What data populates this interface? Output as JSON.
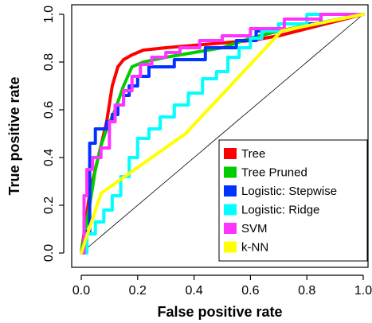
{
  "chart_data": {
    "type": "line",
    "title": "",
    "xlabel": "False positive rate",
    "ylabel": "True positive rate",
    "xlim": [
      0,
      1
    ],
    "ylim": [
      0,
      1
    ],
    "x_ticks": [
      "0.0",
      "0.2",
      "0.4",
      "0.6",
      "0.8",
      "1.0"
    ],
    "y_ticks": [
      "0.0",
      "0.2",
      "0.4",
      "0.6",
      "0.8",
      "1.0"
    ],
    "grid": false,
    "legend_position": "bottom-right",
    "diagonal_reference": true,
    "series": [
      {
        "name": "Tree",
        "color": "#ff0000",
        "x": [
          0,
          0.03,
          0.06,
          0.09,
          0.11,
          0.13,
          0.15,
          0.18,
          0.22,
          0.3,
          0.4,
          0.5,
          0.6,
          0.7,
          1.0
        ],
        "y": [
          0,
          0.25,
          0.4,
          0.55,
          0.7,
          0.78,
          0.81,
          0.83,
          0.85,
          0.86,
          0.87,
          0.88,
          0.89,
          0.91,
          1.0
        ]
      },
      {
        "name": "Tree Pruned",
        "color": "#00cc00",
        "x": [
          0,
          0.03,
          0.05,
          0.07,
          0.09,
          0.12,
          0.15,
          0.18,
          0.22,
          0.3,
          0.4,
          0.5,
          0.6,
          0.7,
          1.0
        ],
        "y": [
          0,
          0.2,
          0.35,
          0.45,
          0.52,
          0.6,
          0.7,
          0.78,
          0.8,
          0.82,
          0.84,
          0.86,
          0.9,
          0.93,
          1.0
        ]
      },
      {
        "name": "Logistic: Stepwise",
        "color": "#0033ff",
        "x": [
          0,
          0.01,
          0.01,
          0.03,
          0.03,
          0.05,
          0.05,
          0.09,
          0.09,
          0.11,
          0.11,
          0.13,
          0.13,
          0.15,
          0.15,
          0.17,
          0.17,
          0.2,
          0.2,
          0.24,
          0.24,
          0.33,
          0.33,
          0.44,
          0.44,
          0.55,
          0.55,
          0.62,
          0.62,
          0.7,
          0.7,
          0.85,
          0.85,
          1.0
        ],
        "y": [
          0,
          0,
          0.09,
          0.09,
          0.46,
          0.46,
          0.52,
          0.52,
          0.55,
          0.55,
          0.58,
          0.58,
          0.62,
          0.62,
          0.66,
          0.66,
          0.7,
          0.7,
          0.74,
          0.74,
          0.78,
          0.78,
          0.81,
          0.81,
          0.86,
          0.86,
          0.89,
          0.89,
          0.93,
          0.93,
          0.96,
          0.96,
          1.0,
          1.0
        ]
      },
      {
        "name": "Logistic: Ridge",
        "color": "#00ffff",
        "x": [
          0,
          0.02,
          0.02,
          0.05,
          0.05,
          0.08,
          0.08,
          0.11,
          0.11,
          0.14,
          0.14,
          0.17,
          0.17,
          0.2,
          0.2,
          0.24,
          0.24,
          0.28,
          0.28,
          0.33,
          0.33,
          0.38,
          0.38,
          0.43,
          0.43,
          0.48,
          0.48,
          0.52,
          0.52,
          0.56,
          0.56,
          0.6,
          0.6,
          0.64,
          0.64,
          0.7,
          0.7,
          0.8,
          0.8,
          1.0
        ],
        "y": [
          0,
          0,
          0.08,
          0.08,
          0.13,
          0.13,
          0.18,
          0.18,
          0.24,
          0.24,
          0.32,
          0.32,
          0.4,
          0.4,
          0.48,
          0.48,
          0.52,
          0.52,
          0.57,
          0.57,
          0.62,
          0.62,
          0.67,
          0.67,
          0.73,
          0.73,
          0.76,
          0.76,
          0.82,
          0.82,
          0.86,
          0.86,
          0.9,
          0.9,
          0.93,
          0.93,
          0.96,
          0.96,
          1.0,
          1.0
        ]
      },
      {
        "name": "SVM",
        "color": "#ff33ff",
        "x": [
          0,
          0.01,
          0.01,
          0.02,
          0.02,
          0.04,
          0.04,
          0.07,
          0.07,
          0.1,
          0.1,
          0.12,
          0.12,
          0.15,
          0.15,
          0.18,
          0.18,
          0.21,
          0.21,
          0.25,
          0.25,
          0.3,
          0.3,
          0.35,
          0.35,
          0.42,
          0.42,
          0.5,
          0.5,
          0.6,
          0.6,
          0.72,
          0.72,
          0.85,
          0.85,
          1.0
        ],
        "y": [
          0,
          0,
          0.24,
          0.24,
          0.35,
          0.35,
          0.4,
          0.4,
          0.44,
          0.44,
          0.55,
          0.55,
          0.62,
          0.62,
          0.68,
          0.68,
          0.74,
          0.74,
          0.79,
          0.79,
          0.82,
          0.82,
          0.84,
          0.84,
          0.86,
          0.86,
          0.89,
          0.89,
          0.91,
          0.91,
          0.94,
          0.94,
          0.98,
          0.98,
          1.0,
          1.0
        ]
      },
      {
        "name": "k-NN",
        "color": "#ffff00",
        "x": [
          0,
          0.07,
          0.37,
          0.71,
          1.0
        ],
        "y": [
          0,
          0.25,
          0.5,
          0.93,
          1.0
        ]
      }
    ]
  }
}
